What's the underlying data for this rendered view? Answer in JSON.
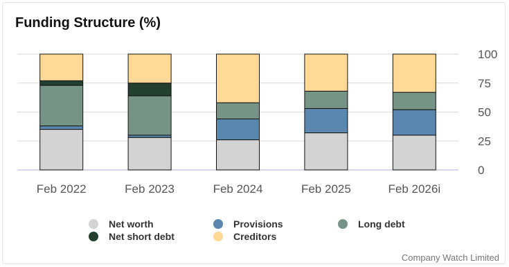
{
  "chart_data": {
    "type": "bar",
    "stacked": true,
    "title": "Funding Structure (%)",
    "categories": [
      "Feb 2022",
      "Feb 2023",
      "Feb 2024",
      "Feb 2025",
      "Feb 2026i"
    ],
    "ylim": [
      0,
      100
    ],
    "yticks": [
      "0",
      "25",
      "50",
      "75",
      "100"
    ],
    "y_axis_side": "right",
    "grid": true,
    "legend_position": "bottom",
    "series": [
      {
        "name": "Net worth",
        "color": "#d3d3d3",
        "values": [
          35,
          28,
          26,
          32,
          30
        ]
      },
      {
        "name": "Provisions",
        "color": "#5b86ad",
        "values": [
          3,
          2,
          18,
          21,
          22
        ]
      },
      {
        "name": "Long debt",
        "color": "#759485",
        "values": [
          35,
          34,
          14,
          15,
          15
        ]
      },
      {
        "name": "Net short debt",
        "color": "#23402f",
        "values": [
          4,
          11,
          0,
          0,
          0
        ]
      },
      {
        "name": "Creditors",
        "color": "#ffd995",
        "values": [
          23,
          25,
          42,
          32,
          33
        ]
      }
    ]
  },
  "credit": "Company Watch Limited"
}
